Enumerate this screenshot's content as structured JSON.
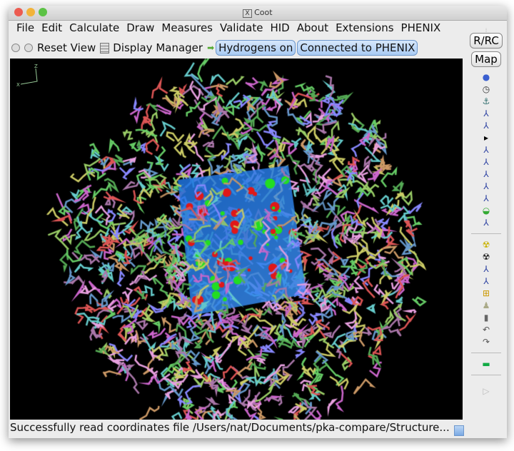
{
  "window": {
    "title": "Coot",
    "title_icon": "X11-icon"
  },
  "menubar": {
    "items": [
      "File",
      "Edit",
      "Calculate",
      "Draw",
      "Measures",
      "Validate",
      "HID",
      "About",
      "Extensions",
      "PHENIX"
    ]
  },
  "toolbar": {
    "reset_view": "Reset View",
    "display_manager": "Display Manager",
    "hydrogens": "Hydrogens on",
    "phenix": "Connected to PHENIX"
  },
  "sidebar": {
    "rrc": "R/RC",
    "map": "Map",
    "icons_top": [
      "rotate-translate-icon",
      "zoom-clock-icon",
      "anchor-icon",
      "real-space-refine-icon",
      "regularize-icon",
      "arrow-right-icon",
      "rigid-body-fit-icon",
      "backrub-icon",
      "rotamer-icon",
      "torsion-icon",
      "flip-peptide-icon",
      "side-chain-180-icon",
      "edit-chi-icon"
    ],
    "icons_mid": [
      "mutate-autofit-icon",
      "mutate-icon",
      "add-terminal-residue-icon",
      "add-atom-icon",
      "place-atom-icon",
      "pointer-atom-icon",
      "delete-icon",
      "undo-icon",
      "redo-icon"
    ],
    "icons_bottom": [
      "flag-icon"
    ]
  },
  "axes": {
    "z": "Z",
    "x": "X"
  },
  "status": "Successfully read coordinates file /Users/nat/Documents/pka-compare/Structure...",
  "colors": {
    "map": "#1e73e0",
    "difference_map_positive": "#22dd22",
    "difference_map_negative": "#e01818",
    "background": "#000000"
  }
}
